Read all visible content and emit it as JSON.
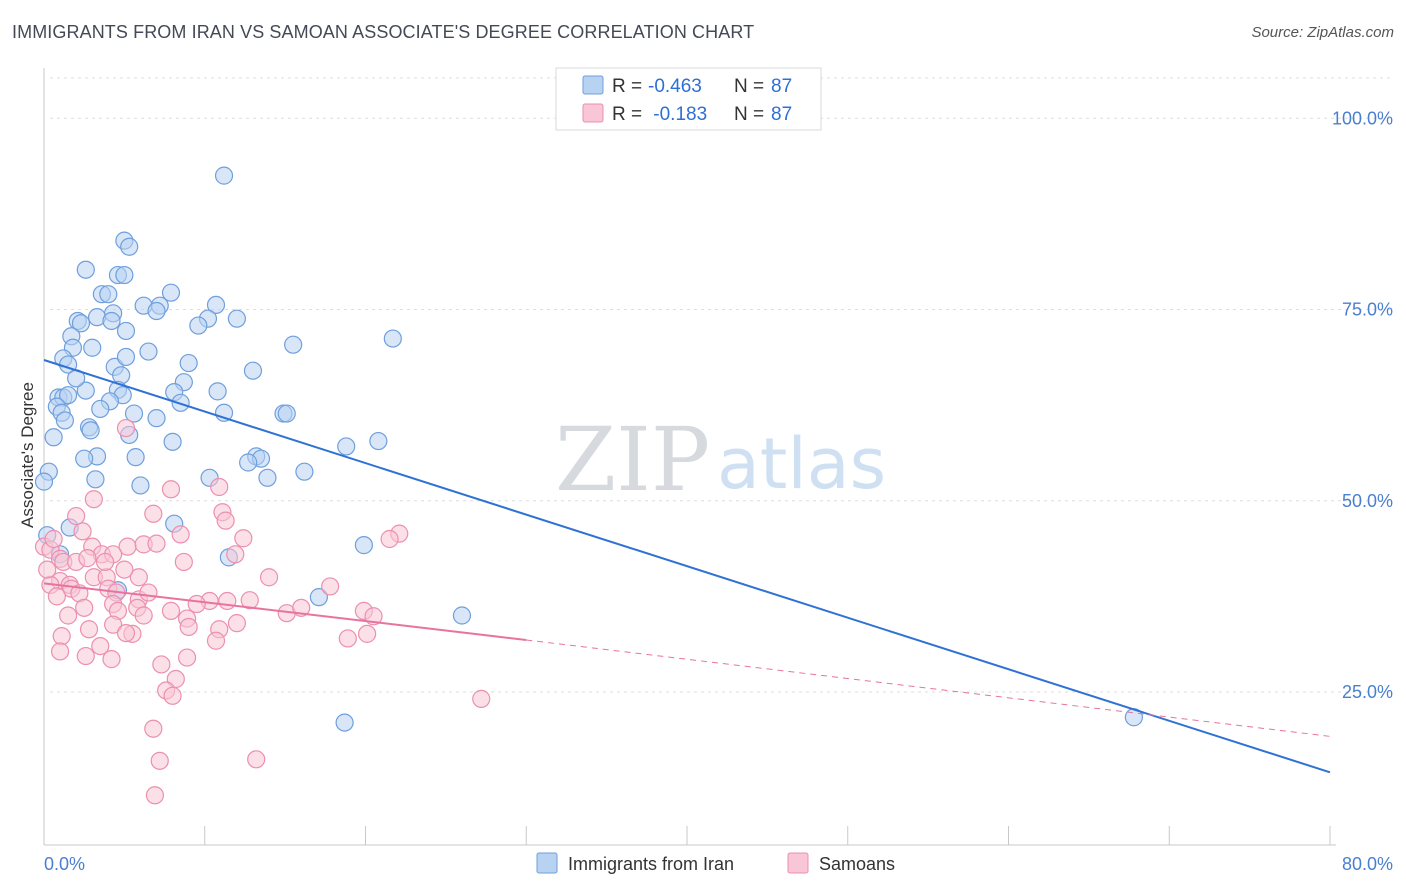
{
  "header": {
    "title": "IMMIGRANTS FROM IRAN VS SAMOAN ASSOCIATE'S DEGREE CORRELATION CHART",
    "source": "Source: ZipAtlas.com"
  },
  "watermark": {
    "zip": "ZIP",
    "atlas": "atlas"
  },
  "legend": {
    "rows": [
      {
        "r_label": "R =",
        "r_value": "-0.463",
        "n_label": "N =",
        "n_value": "87"
      },
      {
        "r_label": "R =",
        "r_value": " -0.183",
        "n_label": "N =",
        "n_value": "87"
      }
    ]
  },
  "chart_data": {
    "type": "scatter",
    "title": "IMMIGRANTS FROM IRAN VS SAMOAN ASSOCIATE'S DEGREE CORRELATION CHART",
    "xlabel": "",
    "ylabel": "Associate's Degree",
    "xlim": [
      0,
      80
    ],
    "ylim": [
      5,
      105
    ],
    "x_tick_labels": [
      "0.0%",
      "80.0%"
    ],
    "y_ticks": [
      25,
      50,
      75,
      100
    ],
    "y_tick_labels": [
      "25.0%",
      "50.0%",
      "75.0%",
      "100.0%"
    ],
    "grid": true,
    "legend_position": "top-center",
    "colors": {
      "iran_fill": "#b8d2f2",
      "iran_stroke": "#6f9fdc",
      "iran_line": "#2f72d4",
      "samoa_fill": "#f8c6d6",
      "samoa_stroke": "#ec8fb0",
      "samoa_line": "#e8739f",
      "axis_text": "#4a7fd0",
      "grid": "#dddddd"
    },
    "series": [
      {
        "name": "Immigrants from Iran",
        "trend": {
          "x0": 0,
          "y0": 68.4,
          "x1": 80,
          "y1": 14.5
        },
        "points": [
          [
            11.2,
            92.5
          ],
          [
            5.0,
            84.0
          ],
          [
            5.3,
            83.2
          ],
          [
            2.6,
            80.2
          ],
          [
            4.6,
            79.5
          ],
          [
            5.0,
            79.5
          ],
          [
            3.6,
            77.0
          ],
          [
            4.0,
            77.0
          ],
          [
            7.9,
            77.2
          ],
          [
            6.2,
            75.5
          ],
          [
            7.2,
            75.5
          ],
          [
            7.0,
            74.8
          ],
          [
            10.7,
            75.6
          ],
          [
            4.3,
            74.5
          ],
          [
            3.3,
            74.0
          ],
          [
            2.1,
            73.5
          ],
          [
            2.3,
            73.2
          ],
          [
            4.2,
            73.5
          ],
          [
            10.2,
            73.8
          ],
          [
            12.0,
            73.8
          ],
          [
            9.6,
            72.9
          ],
          [
            5.1,
            72.2
          ],
          [
            1.7,
            71.5
          ],
          [
            1.8,
            70.0
          ],
          [
            3.0,
            70.0
          ],
          [
            15.5,
            70.4
          ],
          [
            21.7,
            71.2
          ],
          [
            1.2,
            68.6
          ],
          [
            1.5,
            67.8
          ],
          [
            4.4,
            67.5
          ],
          [
            5.1,
            68.8
          ],
          [
            4.8,
            66.4
          ],
          [
            8.7,
            65.5
          ],
          [
            10.8,
            64.3
          ],
          [
            4.6,
            64.5
          ],
          [
            4.9,
            63.8
          ],
          [
            0.9,
            63.5
          ],
          [
            1.2,
            63.5
          ],
          [
            1.5,
            63.8
          ],
          [
            2.6,
            64.4
          ],
          [
            8.1,
            64.2
          ],
          [
            4.1,
            63.0
          ],
          [
            8.5,
            62.8
          ],
          [
            0.8,
            62.3
          ],
          [
            1.1,
            61.5
          ],
          [
            5.6,
            61.4
          ],
          [
            7.0,
            60.8
          ],
          [
            11.2,
            61.5
          ],
          [
            14.9,
            61.4
          ],
          [
            15.1,
            61.4
          ],
          [
            1.3,
            60.5
          ],
          [
            2.8,
            59.6
          ],
          [
            2.9,
            59.2
          ],
          [
            5.3,
            58.6
          ],
          [
            0.6,
            58.3
          ],
          [
            8.0,
            57.7
          ],
          [
            18.8,
            57.1
          ],
          [
            20.8,
            57.8
          ],
          [
            3.3,
            55.8
          ],
          [
            2.5,
            55.5
          ],
          [
            5.7,
            55.7
          ],
          [
            13.2,
            55.8
          ],
          [
            13.5,
            55.5
          ],
          [
            12.7,
            55.0
          ],
          [
            0.3,
            53.8
          ],
          [
            16.2,
            53.8
          ],
          [
            0.0,
            52.5
          ],
          [
            3.2,
            52.8
          ],
          [
            10.3,
            53.0
          ],
          [
            13.9,
            53.0
          ],
          [
            8.1,
            47.0
          ],
          [
            1.6,
            46.5
          ],
          [
            0.2,
            45.5
          ],
          [
            19.9,
            44.2
          ],
          [
            11.5,
            42.6
          ],
          [
            4.6,
            38.3
          ],
          [
            17.1,
            37.4
          ],
          [
            26.0,
            35.0
          ],
          [
            18.7,
            21.0
          ],
          [
            67.8,
            21.7
          ],
          [
            1.0,
            43.0
          ],
          [
            6.5,
            69.5
          ],
          [
            9.0,
            68.0
          ],
          [
            2.0,
            66.0
          ],
          [
            13.0,
            67.0
          ],
          [
            3.5,
            62.0
          ],
          [
            6.0,
            52.0
          ]
        ]
      },
      {
        "name": "Samoans",
        "trend": {
          "x0": 0,
          "y0": 39.2,
          "x1": 30,
          "y1": 31.8,
          "dash_x1": 80,
          "dash_y1": 19.2
        },
        "points": [
          [
            5.1,
            59.5
          ],
          [
            7.9,
            51.5
          ],
          [
            10.9,
            51.8
          ],
          [
            3.1,
            50.2
          ],
          [
            6.8,
            48.3
          ],
          [
            11.1,
            48.5
          ],
          [
            11.3,
            47.4
          ],
          [
            2.4,
            46.0
          ],
          [
            8.5,
            45.6
          ],
          [
            12.4,
            45.1
          ],
          [
            22.1,
            45.7
          ],
          [
            21.5,
            45.0
          ],
          [
            3.0,
            44.0
          ],
          [
            5.2,
            44.0
          ],
          [
            6.2,
            44.3
          ],
          [
            7.0,
            44.4
          ],
          [
            0.0,
            44.0
          ],
          [
            0.4,
            43.6
          ],
          [
            3.6,
            43.0
          ],
          [
            4.3,
            43.0
          ],
          [
            1.0,
            42.4
          ],
          [
            1.2,
            42.0
          ],
          [
            2.0,
            42.0
          ],
          [
            2.7,
            42.5
          ],
          [
            3.1,
            40.0
          ],
          [
            3.9,
            40.0
          ],
          [
            5.9,
            40.0
          ],
          [
            1.0,
            39.5
          ],
          [
            1.6,
            39.0
          ],
          [
            0.4,
            39.0
          ],
          [
            1.7,
            38.5
          ],
          [
            2.2,
            37.9
          ],
          [
            4.0,
            38.5
          ],
          [
            4.5,
            38.0
          ],
          [
            4.3,
            36.5
          ],
          [
            5.9,
            37.1
          ],
          [
            5.8,
            36.0
          ],
          [
            10.3,
            36.9
          ],
          [
            11.4,
            36.9
          ],
          [
            12.8,
            37.0
          ],
          [
            17.8,
            38.8
          ],
          [
            4.6,
            35.6
          ],
          [
            6.2,
            35.0
          ],
          [
            7.9,
            35.6
          ],
          [
            8.9,
            34.6
          ],
          [
            15.1,
            35.3
          ],
          [
            19.9,
            35.6
          ],
          [
            20.5,
            34.9
          ],
          [
            4.3,
            33.8
          ],
          [
            2.8,
            33.2
          ],
          [
            5.5,
            32.6
          ],
          [
            5.1,
            32.7
          ],
          [
            9.0,
            33.5
          ],
          [
            10.9,
            33.2
          ],
          [
            1.1,
            32.3
          ],
          [
            10.7,
            31.7
          ],
          [
            18.9,
            32.0
          ],
          [
            20.1,
            32.6
          ],
          [
            1.0,
            30.3
          ],
          [
            2.6,
            29.7
          ],
          [
            4.2,
            29.3
          ],
          [
            8.9,
            29.5
          ],
          [
            7.3,
            28.6
          ],
          [
            8.2,
            26.7
          ],
          [
            7.6,
            25.2
          ],
          [
            8.0,
            24.5
          ],
          [
            27.2,
            24.1
          ],
          [
            6.8,
            20.2
          ],
          [
            7.2,
            16.0
          ],
          [
            13.2,
            16.2
          ],
          [
            6.9,
            11.5
          ],
          [
            0.2,
            41.0
          ],
          [
            2.5,
            36.0
          ],
          [
            3.5,
            31.0
          ],
          [
            9.5,
            36.5
          ],
          [
            14.0,
            40.0
          ],
          [
            5.0,
            41.0
          ],
          [
            6.5,
            38.0
          ],
          [
            0.8,
            37.5
          ],
          [
            1.5,
            35.0
          ],
          [
            3.8,
            42.0
          ],
          [
            8.7,
            42.0
          ],
          [
            11.9,
            43.0
          ],
          [
            2.0,
            48.0
          ],
          [
            12.0,
            34.0
          ],
          [
            16.0,
            36.0
          ],
          [
            0.6,
            45.0
          ]
        ]
      }
    ]
  }
}
